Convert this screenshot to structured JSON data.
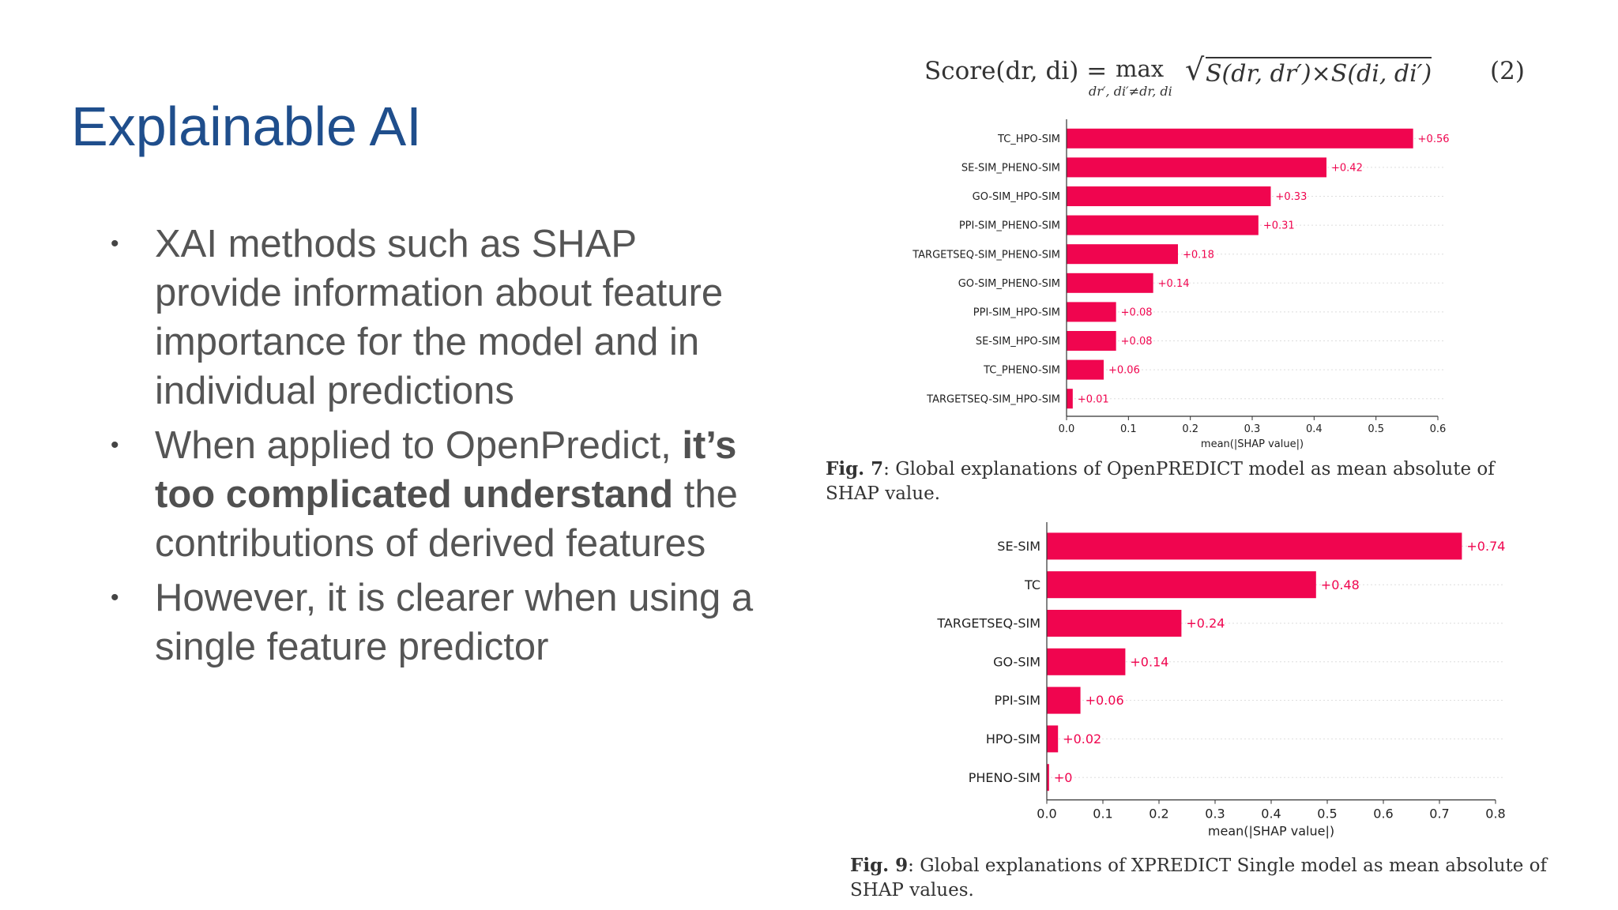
{
  "slide": {
    "title": "Explainable AI",
    "bullets": [
      {
        "text": "XAI methods such as SHAP provide information about feature importance for the model and in individual predictions"
      },
      {
        "pre": "When applied to OpenPredict, ",
        "bold": "it’s too complicated understand",
        "post": " the contributions of derived features"
      },
      {
        "text": "However, it is clearer when using a single feature predictor"
      }
    ]
  },
  "formula": {
    "lhs": "Score(dr, di) =",
    "max": "max",
    "max_sub": "dr′, di′≠dr, di",
    "sqrt_arg": "S(dr, dr′)×S(di, di′)",
    "eq_num": "(2)"
  },
  "colors": {
    "bar": "#f0054f",
    "label": "#f0054f",
    "axis": "#333333",
    "grid": "#dddddd"
  },
  "chart_data": [
    {
      "type": "bar",
      "orientation": "horizontal",
      "categories": [
        "TC_HPO-SIM",
        "SE-SIM_PHENO-SIM",
        "GO-SIM_HPO-SIM",
        "PPI-SIM_PHENO-SIM",
        "TARGETSEQ-SIM_PHENO-SIM",
        "GO-SIM_PHENO-SIM",
        "PPI-SIM_HPO-SIM",
        "SE-SIM_HPO-SIM",
        "TC_PHENO-SIM",
        "TARGETSEQ-SIM_HPO-SIM"
      ],
      "values": [
        0.56,
        0.42,
        0.33,
        0.31,
        0.18,
        0.14,
        0.08,
        0.08,
        0.06,
        0.01
      ],
      "value_labels": [
        "+0.56",
        "+0.42",
        "+0.33",
        "+0.31",
        "+0.18",
        "+0.14",
        "+0.08",
        "+0.08",
        "+0.06",
        "+0.01"
      ],
      "xlim": [
        0,
        0.6
      ],
      "xticks": [
        "0.0",
        "0.1",
        "0.2",
        "0.3",
        "0.4",
        "0.5",
        "0.6"
      ],
      "xlabel": "mean(|SHAP value|)",
      "caption_label": "Fig. 7",
      "caption_text": ": Global explanations of OpenPREDICT model as mean absolute of SHAP value."
    },
    {
      "type": "bar",
      "orientation": "horizontal",
      "categories": [
        "SE-SIM",
        "TC",
        "TARGETSEQ-SIM",
        "GO-SIM",
        "PPI-SIM",
        "HPO-SIM",
        "PHENO-SIM"
      ],
      "values": [
        0.74,
        0.48,
        0.24,
        0.14,
        0.06,
        0.02,
        0.004
      ],
      "value_labels": [
        "+0.74",
        "+0.48",
        "+0.24",
        "+0.14",
        "+0.06",
        "+0.02",
        "+0"
      ],
      "xlim": [
        0,
        0.8
      ],
      "xticks": [
        "0.0",
        "0.1",
        "0.2",
        "0.3",
        "0.4",
        "0.5",
        "0.6",
        "0.7",
        "0.8"
      ],
      "xlabel": "mean(|SHAP value|)",
      "caption_label": "Fig. 9",
      "caption_text": ": Global explanations of XPREDICT Single model as mean absolute of SHAP values."
    }
  ]
}
